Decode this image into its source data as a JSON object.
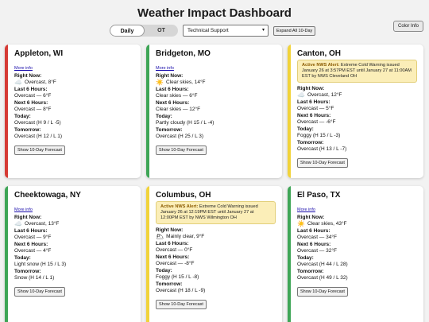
{
  "header": {
    "title": "Weather Impact Dashboard",
    "color_info_label": "Color Info",
    "toggle": {
      "daily": "Daily",
      "ot": "OT"
    },
    "team_select": "Technical Support",
    "expand_label": "Expand All 10-Day"
  },
  "labels": {
    "more_info": "More info",
    "right_now": "Right Now:",
    "last6": "Last 6 Hours:",
    "next6": "Next 6 Hours:",
    "today": "Today:",
    "tomorrow": "Tomorrow:",
    "show_forecast": "Show 10-Day Forecast",
    "alert_head": "Active NWS Alert:"
  },
  "status_colors": {
    "red": "#d63b35",
    "green": "#3ea556",
    "yellow": "#f1d33a"
  },
  "cards": [
    {
      "city": "Appleton, WI",
      "status": "red",
      "icon": "cloud-icon",
      "now": "Overcast, 8°F",
      "last6": "Overcast — 6°F",
      "next6": "Overcast — 8°F",
      "today": "Overcast (H 9 / L -5)",
      "tomorrow": "Overcast (H 12 / L 1)"
    },
    {
      "city": "Bridgeton, MO",
      "status": "green",
      "icon": "sun-icon",
      "now": "Clear skies, 14°F",
      "last6": "Clear skies — 6°F",
      "next6": "Clear skies — 12°F",
      "today": "Partly cloudy (H 15 / L -4)",
      "tomorrow": "Overcast (H 25 / L 3)"
    },
    {
      "city": "Canton, OH",
      "status": "yellow",
      "icon": "cloud-icon",
      "alert": "Extreme Cold Warning issued January 26 at 3:57PM EST until January 27 at 11:00AM EST by NWS Cleveland OH",
      "now": "Overcast, 12°F",
      "last6": "Overcast — 5°F",
      "next6": "Overcast — -6°F",
      "today": "Foggy (H 15 / L -3)",
      "tomorrow": "Overcast (H 13 / L -7)"
    },
    {
      "city": "Cheektowaga, NY",
      "status": "green",
      "icon": "cloud-icon",
      "now": "Overcast, 13°F",
      "last6": "Overcast — 9°F",
      "next6": "Overcast — 4°F",
      "today": "Light snow (H 15 / L 3)",
      "tomorrow": "Snow (H 14 / L 1)"
    },
    {
      "city": "Columbus, OH",
      "status": "yellow",
      "icon": "partly-cloudy-icon",
      "alert": "Extreme Cold Warning issued January 26 at 12:19PM EST until January 27 at 12:00PM EST by NWS Wilmington OH",
      "now": "Mainly clear, 9°F",
      "last6": "Overcast — 0°F",
      "next6": "Overcast — -8°F",
      "today": "Foggy (H 15 / L -8)",
      "tomorrow": "Overcast (H 18 / L -9)"
    },
    {
      "city": "El Paso, TX",
      "status": "green",
      "icon": "sun-icon",
      "now": "Clear skies, 43°F",
      "last6": "Overcast — 34°F",
      "next6": "Overcast — 32°F",
      "today": "Overcast (H 44 / L 28)",
      "tomorrow": "Overcast (H 49 / L 32)"
    }
  ]
}
